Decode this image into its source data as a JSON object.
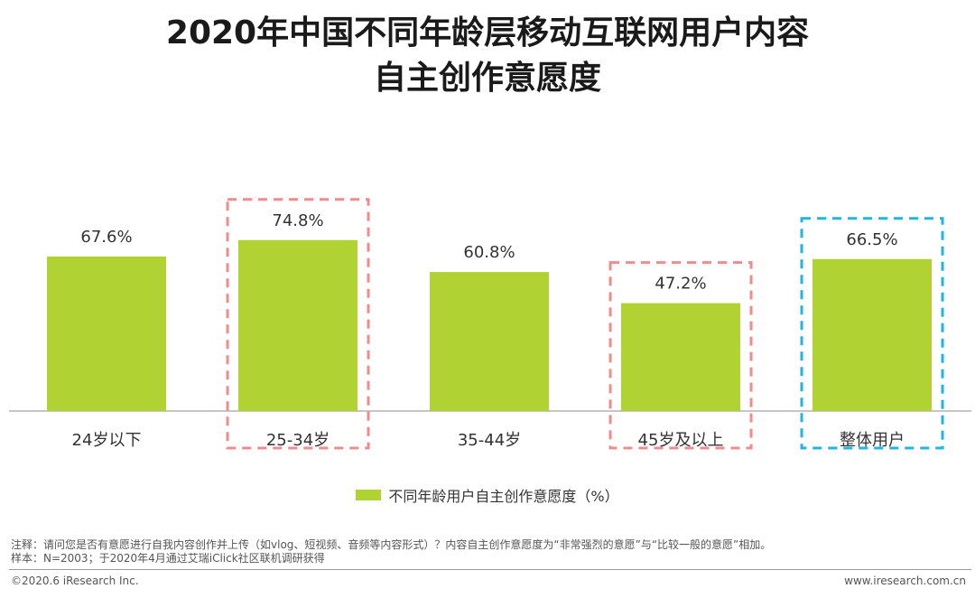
{
  "title_line1": "2020年中国不同年龄层移动互联网用户内容",
  "title_line2": "自主创作意愿度",
  "chart_data": {
    "type": "bar",
    "categories": [
      "24岁以下",
      "25-34岁",
      "35-44岁",
      "45岁及以上",
      "整体用户"
    ],
    "series": [
      {
        "name": "不同年龄用户自主创作意愿度（%）",
        "values": [
          67.6,
          74.8,
          60.8,
          47.2,
          66.5
        ]
      }
    ],
    "value_labels": [
      "67.6%",
      "74.8%",
      "60.8%",
      "47.2%",
      "66.5%"
    ],
    "title": "2020年中国不同年龄层移动互联网用户内容自主创作意愿度",
    "xlabel": "",
    "ylabel": "",
    "ylim": [
      0,
      100
    ],
    "grid": false,
    "legend_position": "bottom-center",
    "bar_color": "#b1d233",
    "highlights": [
      {
        "category_index": 1,
        "color": "#f08c8c",
        "style": "dashed"
      },
      {
        "category_index": 3,
        "color": "#f08c8c",
        "style": "dashed"
      },
      {
        "category_index": 4,
        "color": "#1fb6e0",
        "style": "dashed"
      }
    ]
  },
  "legend_label": "不同年龄用户自主创作意愿度（%）",
  "note_line1": "注释：请问您是否有意愿进行自我内容创作并上传（如vlog、短视频、音频等内容形式）？内容自主创作意愿度为“非常强烈的意愿”与“比较一般的意愿”相加。",
  "note_line2": "样本：N=2003；于2020年4月通过艾瑞iClick社区联机调研获得",
  "footer_left": "©2020.6 iResearch Inc.",
  "footer_right": "www.iresearch.com.cn"
}
